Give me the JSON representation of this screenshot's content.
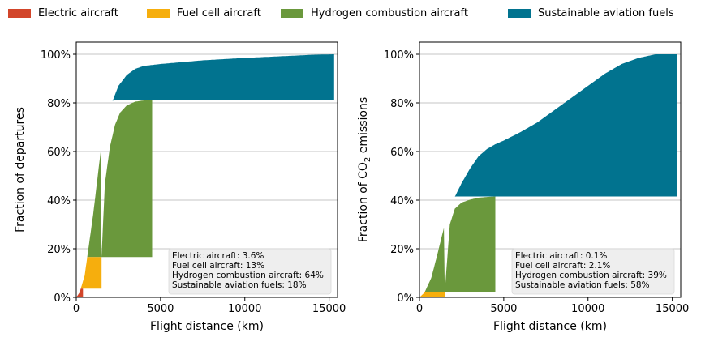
{
  "legend": [
    {
      "label": "Electric aircraft",
      "color": "#d2452a"
    },
    {
      "label": "Fuel cell aircraft",
      "color": "#f6ae0d"
    },
    {
      "label": "Hydrogen combustion aircraft",
      "color": "#6a983c"
    },
    {
      "label": "Sustainable aviation fuels",
      "color": "#01738f"
    }
  ],
  "chart_data": [
    {
      "type": "area",
      "xlabel": "Flight distance (km)",
      "ylabel": "Fraction of departures",
      "xlim": [
        0,
        15500
      ],
      "ylim": [
        0,
        1.05
      ],
      "xticks": [
        {
          "v": 0,
          "label": "0"
        },
        {
          "v": 5000,
          "label": "5000"
        },
        {
          "v": 10000,
          "label": "10000"
        },
        {
          "v": 15000,
          "label": "15000"
        }
      ],
      "yticks": [
        {
          "v": 0,
          "label": "0%"
        },
        {
          "v": 0.2,
          "label": "20%"
        },
        {
          "v": 0.4,
          "label": "40%"
        },
        {
          "v": 0.6,
          "label": "60%"
        },
        {
          "v": 0.8,
          "label": "80%"
        },
        {
          "v": 1.0,
          "label": "100%"
        }
      ],
      "grid": "horizontal",
      "annotations": [
        "Electric aircraft: 3.6%",
        "Fuel cell aircraft: 13%",
        "Hydrogen combustion aircraft: 64%",
        "Sustainable aviation fuels: 18%"
      ],
      "series": [
        {
          "name": "Electric aircraft",
          "color": "#d2452a",
          "range": [
            0,
            400
          ],
          "curve": [
            [
              0,
              0
            ],
            [
              100,
              0.005
            ],
            [
              200,
              0.012
            ],
            [
              300,
              0.022
            ],
            [
              400,
              0.036
            ]
          ]
        },
        {
          "name": "Fuel cell aircraft",
          "color": "#f6ae0d",
          "range": [
            400,
            1500
          ],
          "curve": [
            [
              400,
              0.036
            ],
            [
              500,
              0.06
            ],
            [
              700,
              0.11
            ],
            [
              900,
              0.14
            ],
            [
              1100,
              0.158
            ],
            [
              1300,
              0.164
            ],
            [
              1500,
              0.166
            ]
          ]
        },
        {
          "name": "Hydrogen combustion aircraft",
          "color": "#6a983c",
          "range": [
            1500,
            4500
          ],
          "curve": [
            [
              1500,
              0.166
            ],
            [
              1700,
              0.47
            ],
            [
              2000,
              0.62
            ],
            [
              2300,
              0.71
            ],
            [
              2600,
              0.76
            ],
            [
              3000,
              0.79
            ],
            [
              3500,
              0.805
            ],
            [
              4000,
              0.81
            ],
            [
              4500,
              0.81
            ]
          ]
        },
        {
          "name": "Sustainable aviation fuels",
          "color": "#01738f",
          "range": [
            4500,
            15300
          ],
          "curve": [
            [
              0,
              0
            ],
            [
              200,
              0.02
            ],
            [
              500,
              0.09
            ],
            [
              1000,
              0.34
            ],
            [
              1500,
              0.63
            ],
            [
              2000,
              0.78
            ],
            [
              2500,
              0.87
            ],
            [
              3000,
              0.915
            ],
            [
              3500,
              0.94
            ],
            [
              4000,
              0.952
            ],
            [
              5000,
              0.96
            ],
            [
              7500,
              0.975
            ],
            [
              10000,
              0.985
            ],
            [
              12500,
              0.993
            ],
            [
              14000,
              0.998
            ],
            [
              15300,
              1.0
            ]
          ]
        }
      ]
    },
    {
      "type": "area",
      "xlabel": "Flight distance (km)",
      "ylabel_pre": "Fraction of CO",
      "ylabel_sub": "2",
      "ylabel_post": " emissions",
      "xlim": [
        0,
        15500
      ],
      "ylim": [
        0,
        1.05
      ],
      "xticks": [
        {
          "v": 0,
          "label": "0"
        },
        {
          "v": 5000,
          "label": "5000"
        },
        {
          "v": 10000,
          "label": "10000"
        },
        {
          "v": 15000,
          "label": "15000"
        }
      ],
      "yticks": [
        {
          "v": 0,
          "label": "0%"
        },
        {
          "v": 0.2,
          "label": "20%"
        },
        {
          "v": 0.4,
          "label": "40%"
        },
        {
          "v": 0.6,
          "label": "60%"
        },
        {
          "v": 0.8,
          "label": "80%"
        },
        {
          "v": 1.0,
          "label": "100%"
        }
      ],
      "grid": "horizontal",
      "annotations": [
        "Electric aircraft: 0.1%",
        "Fuel cell aircraft: 2.1%",
        "Hydrogen combustion aircraft: 39%",
        "Sustainable aviation fuels: 58%"
      ],
      "series": [
        {
          "name": "Electric aircraft",
          "color": "#d2452a",
          "range": [
            0,
            400
          ],
          "curve": [
            [
              0,
              0
            ],
            [
              200,
              0.0005
            ],
            [
              400,
              0.001
            ]
          ]
        },
        {
          "name": "Fuel cell aircraft",
          "color": "#f6ae0d",
          "range": [
            400,
            1500
          ],
          "curve": [
            [
              400,
              0.001
            ],
            [
              700,
              0.008
            ],
            [
              1000,
              0.015
            ],
            [
              1300,
              0.02
            ],
            [
              1500,
              0.022
            ]
          ]
        },
        {
          "name": "Hydrogen combustion aircraft",
          "color": "#6a983c",
          "range": [
            1500,
            4500
          ],
          "curve": [
            [
              1500,
              0.022
            ],
            [
              1800,
              0.3
            ],
            [
              2100,
              0.365
            ],
            [
              2500,
              0.39
            ],
            [
              3000,
              0.402
            ],
            [
              3500,
              0.41
            ],
            [
              4000,
              0.413
            ],
            [
              4500,
              0.415
            ]
          ]
        },
        {
          "name": "Sustainable aviation fuels",
          "color": "#01738f",
          "range": [
            4500,
            15300
          ],
          "curve": [
            [
              0,
              0
            ],
            [
              300,
              0.02
            ],
            [
              700,
              0.08
            ],
            [
              1000,
              0.16
            ],
            [
              1500,
              0.3
            ],
            [
              2000,
              0.4
            ],
            [
              2500,
              0.47
            ],
            [
              3000,
              0.53
            ],
            [
              3500,
              0.58
            ],
            [
              4000,
              0.61
            ],
            [
              4500,
              0.63
            ],
            [
              5000,
              0.645
            ],
            [
              6000,
              0.68
            ],
            [
              7000,
              0.72
            ],
            [
              8000,
              0.77
            ],
            [
              9000,
              0.82
            ],
            [
              10000,
              0.87
            ],
            [
              11000,
              0.92
            ],
            [
              12000,
              0.96
            ],
            [
              13000,
              0.985
            ],
            [
              14000,
              1.0
            ],
            [
              15300,
              1.0
            ]
          ]
        }
      ]
    }
  ]
}
